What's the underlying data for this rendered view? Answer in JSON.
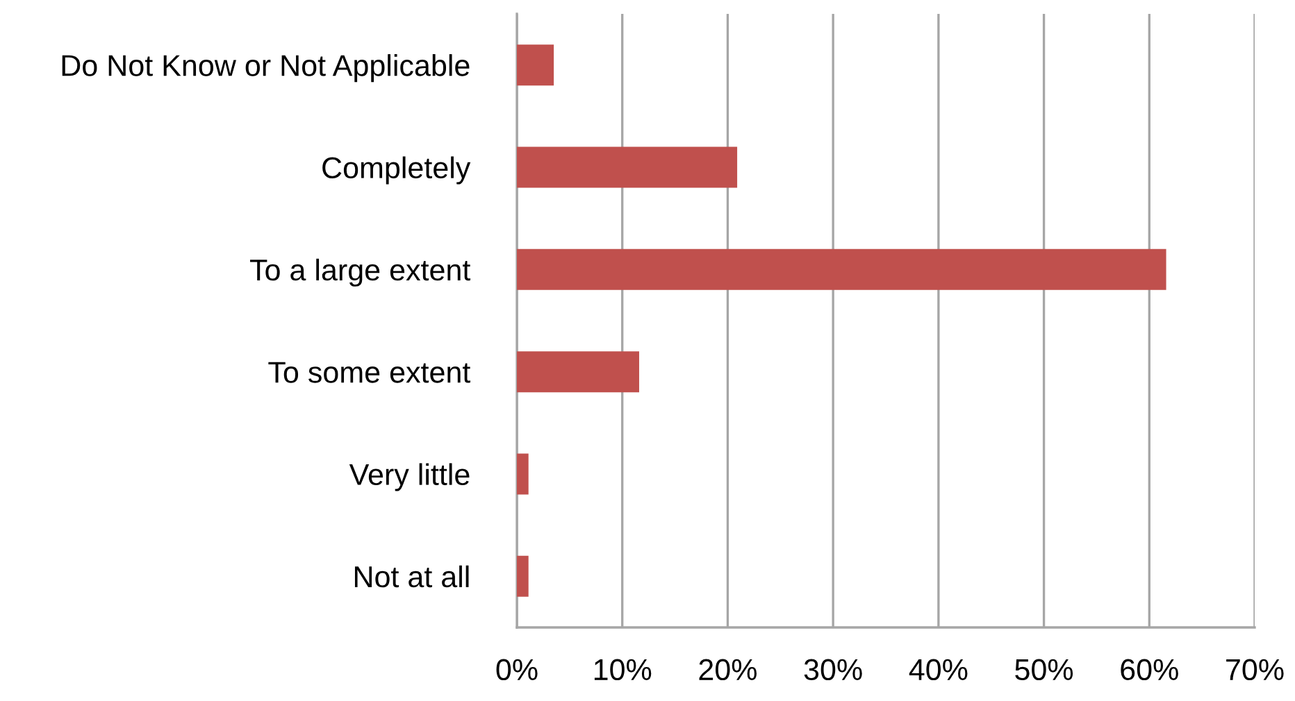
{
  "chart_data": {
    "type": "bar",
    "orientation": "horizontal",
    "categories": [
      "Do Not Know or Not Applicable",
      "Completely",
      "To a large extent",
      "To some extent",
      "Very little",
      "Not at all"
    ],
    "values": [
      3.5,
      20.9,
      61.6,
      11.6,
      1.1,
      1.1
    ],
    "color": "#c0504d",
    "xlim": [
      0,
      70
    ],
    "xticks": [
      {
        "value": 0,
        "label": "0%"
      },
      {
        "value": 10,
        "label": "10%"
      },
      {
        "value": 20,
        "label": "20%"
      },
      {
        "value": 30,
        "label": "30%"
      },
      {
        "value": 40,
        "label": "40%"
      },
      {
        "value": 50,
        "label": "50%"
      },
      {
        "value": 60,
        "label": "60%"
      },
      {
        "value": 70,
        "label": "70%"
      }
    ],
    "grid": "x",
    "legend": false
  }
}
